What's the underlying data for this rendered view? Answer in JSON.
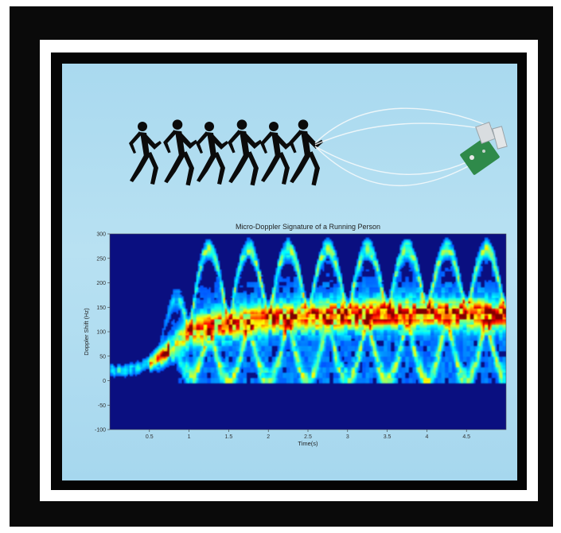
{
  "colors": {
    "frame": "#0a0a0a",
    "mat": "#ffffff",
    "sky": "#a9d9ef",
    "plot_background": "#0a0f80",
    "runner": "#0b0b0b",
    "radar_board": "#2f8a4a"
  },
  "illustration": {
    "runner_icon": "running-person-icon",
    "runner_count": 6,
    "radar_icon": "radar-sensor-board-icon",
    "beam_icon": "radar-beam-lobes-icon"
  },
  "chart_data": {
    "type": "heatmap",
    "title": "Micro-Doppler Signature of a Running Person",
    "xlabel": "Time(s)",
    "ylabel": "Doppler Shift (Hz)",
    "xlim": [
      0,
      5
    ],
    "ylim": [
      -100,
      300
    ],
    "x_ticks": [
      0.5,
      1,
      1.5,
      2,
      2.5,
      3,
      3.5,
      4,
      4.5
    ],
    "x_tick_labels": [
      "0.5",
      "1",
      "1.5",
      "2",
      "2.5",
      "3",
      "3.5",
      "4",
      "4.5"
    ],
    "y_ticks": [
      -100,
      -50,
      0,
      50,
      100,
      150,
      200,
      250,
      300
    ],
    "y_tick_labels": [
      "-100",
      "-50",
      "0",
      "50",
      "100",
      "150",
      "200",
      "250",
      "300"
    ],
    "colormap": "jet",
    "grid": false,
    "torso_track": [
      {
        "t": 0.0,
        "hz": 20
      },
      {
        "t": 0.3,
        "hz": 22
      },
      {
        "t": 0.6,
        "hz": 45
      },
      {
        "t": 0.8,
        "hz": 70
      },
      {
        "t": 1.0,
        "hz": 100
      },
      {
        "t": 1.5,
        "hz": 115
      },
      {
        "t": 2.0,
        "hz": 125
      },
      {
        "t": 2.5,
        "hz": 130
      },
      {
        "t": 3.0,
        "hz": 132
      },
      {
        "t": 3.5,
        "hz": 135
      },
      {
        "t": 4.0,
        "hz": 135
      },
      {
        "t": 4.5,
        "hz": 135
      },
      {
        "t": 5.0,
        "hz": 130
      }
    ],
    "limb_swing_period_s": 0.5,
    "limb_peak_hz": 270,
    "limb_min_hz": 0
  }
}
